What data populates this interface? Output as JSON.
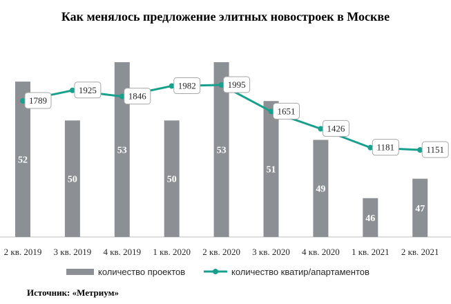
{
  "chart_data": {
    "type": "bar+line",
    "title": "Как менялось предложение элитных новостроек  в Москве",
    "categories": [
      "2 кв. 2019",
      "3 кв. 2019",
      "4 кв. 2019",
      "1 кв. 2020",
      "2 кв. 2020",
      "3 кв. 2020",
      "4 кв. 2020",
      "1 кв. 2021",
      "2 кв. 2021"
    ],
    "series": [
      {
        "name": "количество проектов",
        "type": "bar",
        "axis": "left",
        "values": [
          52,
          50,
          53,
          50,
          53,
          51,
          49,
          46,
          47
        ],
        "color": "#8c8f93"
      },
      {
        "name": "количество кватир/апартаментов",
        "type": "line",
        "axis": "right",
        "values": [
          1789,
          1925,
          1846,
          1982,
          1995,
          1651,
          1426,
          1181,
          1151
        ],
        "color": "#17a08c"
      }
    ],
    "legend_position": "bottom",
    "grid": false
  },
  "source": "Источник: «Метриум»"
}
